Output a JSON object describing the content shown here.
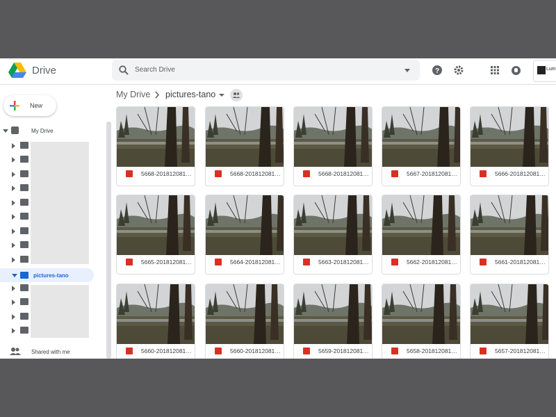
{
  "header": {
    "app_name": "Drive",
    "search_placeholder": "Search Drive",
    "account": "Lum"
  },
  "sidebar": {
    "new_button": "New",
    "my_drive": "My Drive",
    "current_folder": "pictures-tano",
    "shared": "Shared with me"
  },
  "breadcrumb": {
    "root": "My Drive",
    "current": "pictures-tano"
  },
  "files": [
    {
      "name": "5668-201812081…"
    },
    {
      "name": "5668-201812081…"
    },
    {
      "name": "5668-201812081…"
    },
    {
      "name": "5667-201812081…"
    },
    {
      "name": "5666-201812081…"
    },
    {
      "name": "5665-201812081…"
    },
    {
      "name": "5664-201812081…"
    },
    {
      "name": "5663-201812081…"
    },
    {
      "name": "5662-201812081…"
    },
    {
      "name": "5661-201812081…"
    },
    {
      "name": "5660-201812081…"
    },
    {
      "name": "5660-201812081…"
    },
    {
      "name": "5659-201812081…"
    },
    {
      "name": "5658-201812081…"
    },
    {
      "name": "5657-201812081…"
    }
  ]
}
